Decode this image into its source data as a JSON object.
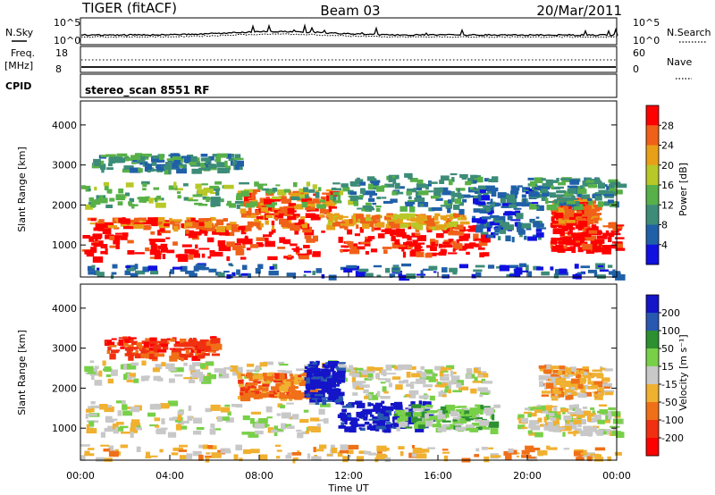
{
  "header": {
    "radar": "TIGER (fitACF)",
    "beam": "Beam 03",
    "date": "20/Mar/2011"
  },
  "top_panels": {
    "nsky_label": "N.Sky",
    "nsky_ticks": [
      "10^5",
      "10^0"
    ],
    "nsearch_label": "N.Search",
    "nsearch_ticks": [
      "10^5",
      "10^0"
    ],
    "freq_label": "Freq.",
    "freq_unit": "[MHz]",
    "freq_ticks": [
      "18",
      "8"
    ],
    "nave_label": "Nave",
    "nave_ticks": [
      "60",
      "0"
    ],
    "cpid_label": "CPID",
    "cpid_value": "stereo_scan 8551 RF"
  },
  "chart_data": [
    {
      "type": "heatmap",
      "panel": "power",
      "ylabel": "Slant Range [km]",
      "xlabel": "",
      "yticks": [
        "1000",
        "2000",
        "3000",
        "4000"
      ],
      "ylim": [
        200,
        4600
      ],
      "xlim": [
        0,
        24
      ],
      "colorbar": {
        "label": "Power [dB]",
        "ticks": [
          "4",
          "8",
          "12",
          "16",
          "20",
          "24",
          "28"
        ],
        "colors": [
          "#1010e0",
          "#2060a8",
          "#3c8c78",
          "#58b048",
          "#b8c828",
          "#e8a018",
          "#f06018",
          "#ff0000"
        ]
      },
      "bands": [
        {
          "t0": 0.0,
          "t1": 10.8,
          "r0": 700,
          "r1": 1450,
          "level": 7
        },
        {
          "t0": 0.3,
          "t1": 10.0,
          "r0": 1450,
          "r1": 1700,
          "level": 6
        },
        {
          "t0": 7.0,
          "t1": 11.2,
          "r0": 1700,
          "r1": 2400,
          "level": 6
        },
        {
          "t0": 0.0,
          "t1": 12.5,
          "r0": 2000,
          "r1": 2600,
          "level": 3
        },
        {
          "t0": 0.5,
          "t1": 7.0,
          "r0": 2900,
          "r1": 3300,
          "level": 2
        },
        {
          "t0": 11.5,
          "t1": 18.0,
          "r0": 800,
          "r1": 1500,
          "level": 7
        },
        {
          "t0": 11.0,
          "t1": 17.0,
          "r0": 1500,
          "r1": 1800,
          "level": 5
        },
        {
          "t0": 12.0,
          "t1": 18.5,
          "r0": 1900,
          "r1": 2800,
          "level": 2
        },
        {
          "t0": 17.5,
          "t1": 20.5,
          "r0": 1200,
          "r1": 2500,
          "level": 1
        },
        {
          "t0": 21.0,
          "t1": 24.0,
          "r0": 900,
          "r1": 1600,
          "level": 7
        },
        {
          "t0": 21.0,
          "t1": 23.0,
          "r0": 1600,
          "r1": 2200,
          "level": 6
        },
        {
          "t0": 20.0,
          "t1": 24.0,
          "r0": 2000,
          "r1": 2700,
          "level": 2
        },
        {
          "t0": 0.0,
          "t1": 24.0,
          "r0": 250,
          "r1": 550,
          "level": 1
        }
      ]
    },
    {
      "type": "heatmap",
      "panel": "velocity",
      "ylabel": "Slant Range [km]",
      "xlabel": "Time UT",
      "xticks": [
        "00:00",
        "04:00",
        "08:00",
        "12:00",
        "16:00",
        "20:00",
        "00:00"
      ],
      "yticks": [
        "1000",
        "2000",
        "3000",
        "4000"
      ],
      "ylim": [
        200,
        4600
      ],
      "xlim": [
        0,
        24
      ],
      "colorbar": {
        "label": "Velocity [m s⁻¹]",
        "ticks": [
          "200",
          "100",
          "50",
          "15",
          "-15",
          "-50",
          "-100",
          "-200"
        ],
        "colors": [
          "#1414c8",
          "#2858b0",
          "#2c9030",
          "#78d048",
          "#c8c8c8",
          "#f0b030",
          "#f07018",
          "#f03010",
          "#ff0000"
        ]
      },
      "bands": [
        {
          "t0": 0.0,
          "t1": 11.0,
          "r0": 900,
          "r1": 1700,
          "level": 4
        },
        {
          "t0": 0.0,
          "t1": 12.0,
          "r0": 2200,
          "r1": 2700,
          "level": 4
        },
        {
          "t0": 1.0,
          "t1": 6.0,
          "r0": 2800,
          "r1": 3300,
          "level": 7
        },
        {
          "t0": 7.0,
          "t1": 10.5,
          "r0": 1800,
          "r1": 2400,
          "level": 6
        },
        {
          "t0": 10.0,
          "t1": 11.5,
          "r0": 1700,
          "r1": 2700,
          "level": 0
        },
        {
          "t0": 11.5,
          "t1": 15.5,
          "r0": 1000,
          "r1": 1700,
          "level": 0
        },
        {
          "t0": 14.0,
          "t1": 18.5,
          "r0": 1000,
          "r1": 1600,
          "level": 3
        },
        {
          "t0": 12.0,
          "t1": 18.0,
          "r0": 1800,
          "r1": 2600,
          "level": 4
        },
        {
          "t0": 19.5,
          "t1": 24.0,
          "r0": 900,
          "r1": 1600,
          "level": 4
        },
        {
          "t0": 20.5,
          "t1": 23.5,
          "r0": 1800,
          "r1": 2600,
          "level": 5
        },
        {
          "t0": 0.0,
          "t1": 24.0,
          "r0": 250,
          "r1": 600,
          "level": 5
        }
      ]
    }
  ]
}
